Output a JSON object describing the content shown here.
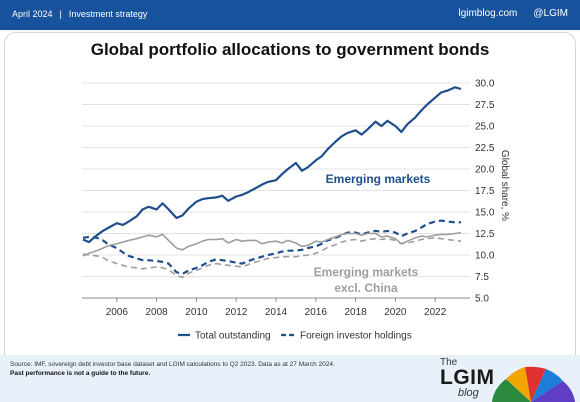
{
  "header": {
    "date": "April 2024",
    "category": "Investment strategy",
    "website": "lgimblog.com",
    "handle": "@LGIM"
  },
  "footer": {
    "source": "Source: IMF, sovereign debt investor base dataset and LGIM calculations to Q2 2023. Data as at 27 March 2024.",
    "disclaimer": "Past performance is not a guide to the future."
  },
  "brand": {
    "the": "The",
    "name": "LGIM",
    "blog": "blog"
  },
  "colors": {
    "brand_blue": "#17539c",
    "em_series": "#1f4e8c",
    "ex_china_series": "#9e9e9e",
    "footer_bg": "#e8f1f9"
  },
  "chart_data": {
    "type": "line",
    "title": "Global portfolio allocations to government bonds",
    "ylabel": "Global share, %",
    "y_axis_side": "right",
    "ylim": [
      5,
      30
    ],
    "xlim": [
      2004.25,
      2023.75
    ],
    "yticks": [
      "5.0",
      "7.5",
      "10.0",
      "12.5",
      "15.0",
      "17.5",
      "20.0",
      "22.5",
      "25.0",
      "27.5",
      "30.0"
    ],
    "xticks": [
      "2006",
      "2008",
      "2010",
      "2012",
      "2014",
      "2016",
      "2018",
      "2020",
      "2022"
    ],
    "grid": "horizontal",
    "legend_position": "bottom",
    "legend": [
      {
        "label": "Total outstanding",
        "style": "solid"
      },
      {
        "label": "Foreign investor holdings",
        "style": "dashed"
      }
    ],
    "annotations": [
      {
        "text": "Emerging markets",
        "color": "#1f4e8c"
      },
      {
        "text": "Emerging markets",
        "color": "#9e9e9e"
      },
      {
        "text": "excl. China",
        "color": "#9e9e9e"
      }
    ],
    "series": [
      {
        "group": "Emerging markets",
        "measure": "Total outstanding",
        "style": "solid",
        "color": "#1f4e8c",
        "x": [
          2004.3,
          2004.6,
          2005.0,
          2005.3,
          2005.6,
          2006.0,
          2006.3,
          2006.6,
          2007.0,
          2007.3,
          2007.6,
          2008.0,
          2008.3,
          2008.6,
          2009.0,
          2009.3,
          2009.6,
          2010.0,
          2010.3,
          2010.6,
          2011.0,
          2011.3,
          2011.6,
          2012.0,
          2012.3,
          2012.6,
          2013.0,
          2013.3,
          2013.6,
          2014.0,
          2014.3,
          2014.6,
          2015.0,
          2015.3,
          2015.6,
          2016.0,
          2016.3,
          2016.6,
          2017.0,
          2017.3,
          2017.6,
          2018.0,
          2018.3,
          2018.6,
          2019.0,
          2019.3,
          2019.6,
          2020.0,
          2020.3,
          2020.6,
          2021.0,
          2021.3,
          2021.6,
          2022.0,
          2022.3,
          2022.6,
          2023.0,
          2023.3
        ],
        "y": [
          11.8,
          11.5,
          12.3,
          12.8,
          13.2,
          13.7,
          13.5,
          13.9,
          14.5,
          15.3,
          15.6,
          15.3,
          16.0,
          15.3,
          14.3,
          14.6,
          15.4,
          16.2,
          16.5,
          16.6,
          16.7,
          16.9,
          16.3,
          16.8,
          17.0,
          17.3,
          17.8,
          18.2,
          18.5,
          18.7,
          19.4,
          20.0,
          20.7,
          19.8,
          20.2,
          21.0,
          21.5,
          22.3,
          23.2,
          23.8,
          24.2,
          24.5,
          24.0,
          24.6,
          25.5,
          25.0,
          25.6,
          25.0,
          24.3,
          25.2,
          26.0,
          26.8,
          27.5,
          28.3,
          28.9,
          29.1,
          29.5,
          29.3
        ]
      },
      {
        "group": "Emerging markets",
        "measure": "Foreign investor holdings",
        "style": "dashed",
        "color": "#1f4e8c",
        "x": [
          2004.3,
          2004.6,
          2005.0,
          2005.3,
          2005.6,
          2006.0,
          2006.3,
          2006.6,
          2007.0,
          2007.3,
          2007.6,
          2008.0,
          2008.3,
          2008.6,
          2009.0,
          2009.3,
          2009.6,
          2010.0,
          2010.3,
          2010.6,
          2011.0,
          2011.3,
          2011.6,
          2012.0,
          2012.3,
          2012.6,
          2013.0,
          2013.3,
          2013.6,
          2014.0,
          2014.3,
          2014.6,
          2015.0,
          2015.3,
          2015.6,
          2016.0,
          2016.3,
          2016.6,
          2017.0,
          2017.3,
          2017.6,
          2018.0,
          2018.3,
          2018.6,
          2019.0,
          2019.3,
          2019.6,
          2020.0,
          2020.3,
          2020.6,
          2021.0,
          2021.3,
          2021.6,
          2022.0,
          2022.3,
          2022.6,
          2023.0,
          2023.3
        ],
        "y": [
          12.0,
          12.1,
          12.0,
          11.7,
          11.2,
          10.8,
          10.3,
          9.9,
          9.6,
          9.4,
          9.4,
          9.3,
          9.2,
          9.0,
          8.0,
          7.8,
          8.2,
          8.5,
          8.8,
          9.2,
          9.5,
          9.4,
          9.3,
          9.1,
          9.0,
          9.3,
          9.6,
          9.8,
          10.0,
          10.2,
          10.4,
          10.5,
          10.5,
          10.6,
          10.8,
          11.0,
          11.3,
          11.7,
          12.0,
          12.3,
          12.6,
          12.6,
          12.4,
          12.6,
          12.8,
          12.7,
          12.8,
          12.6,
          12.2,
          12.5,
          12.8,
          13.2,
          13.6,
          13.9,
          14.0,
          13.9,
          13.8,
          13.8
        ]
      },
      {
        "group": "Emerging markets excl. China",
        "measure": "Total outstanding",
        "style": "solid",
        "color": "#9e9e9e",
        "x": [
          2004.3,
          2004.6,
          2005.0,
          2005.3,
          2005.6,
          2006.0,
          2006.3,
          2006.6,
          2007.0,
          2007.3,
          2007.6,
          2008.0,
          2008.3,
          2008.6,
          2009.0,
          2009.3,
          2009.6,
          2010.0,
          2010.3,
          2010.6,
          2011.0,
          2011.3,
          2011.6,
          2012.0,
          2012.3,
          2012.6,
          2013.0,
          2013.3,
          2013.6,
          2014.0,
          2014.3,
          2014.6,
          2015.0,
          2015.3,
          2015.6,
          2016.0,
          2016.3,
          2016.6,
          2017.0,
          2017.3,
          2017.6,
          2018.0,
          2018.3,
          2018.6,
          2019.0,
          2019.3,
          2019.6,
          2020.0,
          2020.3,
          2020.6,
          2021.0,
          2021.3,
          2021.6,
          2022.0,
          2022.3,
          2022.6,
          2023.0,
          2023.3
        ],
        "y": [
          9.9,
          10.2,
          10.5,
          10.8,
          11.1,
          11.3,
          11.5,
          11.7,
          11.9,
          12.1,
          12.3,
          12.1,
          12.4,
          11.7,
          10.8,
          10.6,
          11.0,
          11.3,
          11.6,
          11.8,
          11.8,
          11.9,
          11.4,
          11.8,
          11.6,
          11.7,
          11.7,
          11.3,
          11.5,
          11.6,
          11.4,
          11.7,
          11.4,
          11.0,
          11.1,
          11.6,
          11.5,
          11.8,
          12.1,
          12.4,
          12.5,
          12.5,
          12.3,
          12.5,
          12.5,
          12.1,
          12.2,
          11.9,
          11.3,
          11.6,
          12.0,
          12.2,
          12.1,
          12.3,
          12.4,
          12.4,
          12.5,
          12.6
        ]
      },
      {
        "group": "Emerging markets excl. China",
        "measure": "Foreign investor holdings",
        "style": "dashed",
        "color": "#9e9e9e",
        "x": [
          2004.3,
          2004.6,
          2005.0,
          2005.3,
          2005.6,
          2006.0,
          2006.3,
          2006.6,
          2007.0,
          2007.3,
          2007.6,
          2008.0,
          2008.3,
          2008.6,
          2009.0,
          2009.3,
          2009.6,
          2010.0,
          2010.3,
          2010.6,
          2011.0,
          2011.3,
          2011.6,
          2012.0,
          2012.3,
          2012.6,
          2013.0,
          2013.3,
          2013.6,
          2014.0,
          2014.3,
          2014.6,
          2015.0,
          2015.3,
          2015.6,
          2016.0,
          2016.3,
          2016.6,
          2017.0,
          2017.3,
          2017.6,
          2018.0,
          2018.3,
          2018.6,
          2019.0,
          2019.3,
          2019.6,
          2020.0,
          2020.3,
          2020.6,
          2021.0,
          2021.3,
          2021.6,
          2022.0,
          2022.3,
          2022.6,
          2023.0,
          2023.3
        ],
        "y": [
          10.1,
          10.0,
          9.9,
          9.7,
          9.3,
          9.0,
          8.8,
          8.6,
          8.5,
          8.4,
          8.5,
          8.6,
          8.5,
          8.3,
          7.6,
          7.4,
          7.9,
          8.2,
          8.5,
          8.8,
          9.0,
          8.9,
          8.8,
          8.7,
          8.6,
          8.9,
          9.2,
          9.4,
          9.6,
          9.7,
          9.8,
          9.8,
          9.8,
          9.9,
          10.0,
          10.2,
          10.5,
          10.9,
          11.2,
          11.5,
          11.7,
          11.8,
          11.6,
          11.8,
          11.9,
          11.8,
          11.9,
          11.7,
          11.3,
          11.4,
          11.6,
          11.8,
          11.9,
          12.0,
          11.9,
          11.8,
          11.7,
          11.6
        ]
      }
    ]
  }
}
